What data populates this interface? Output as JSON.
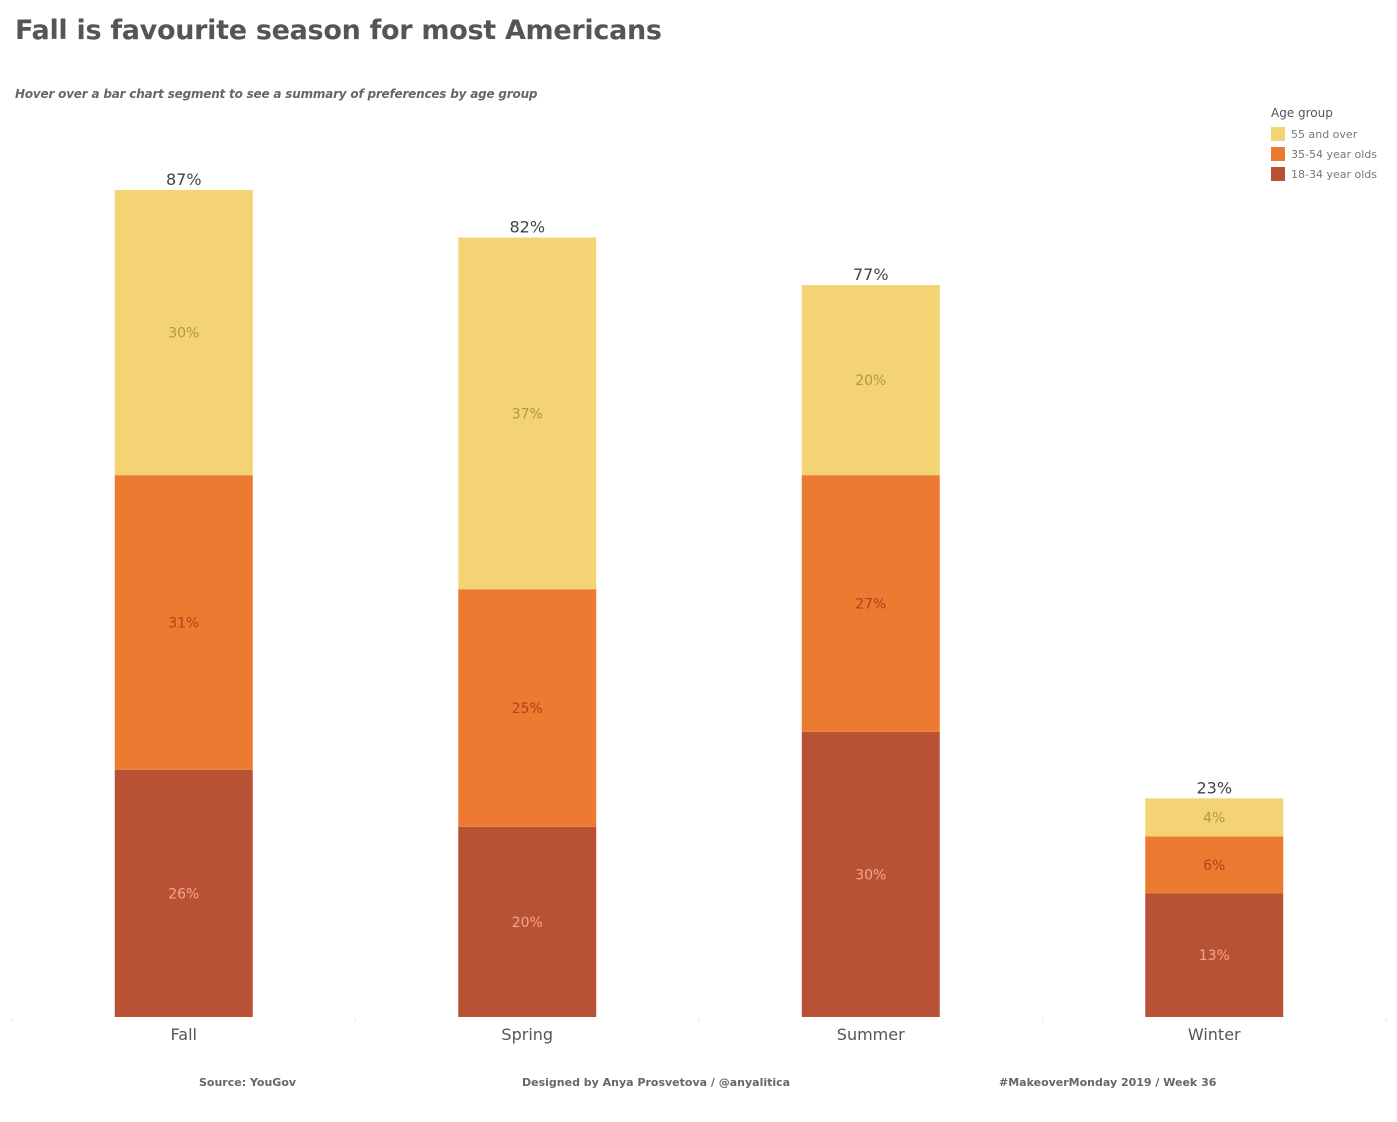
{
  "header": {
    "title": "Fall is favourite season for most Americans",
    "subtitle": "Hover over a bar chart  segment to see a summary of preferences by age group"
  },
  "legend": {
    "title": "Age group",
    "items": [
      {
        "label": "55 and over",
        "color": "#F3D374"
      },
      {
        "label": "35-54 year olds",
        "color": "#EC7A30"
      },
      {
        "label": "18-34 year olds",
        "color": "#B85235"
      }
    ]
  },
  "footer": {
    "source": "Source: YouGov",
    "credit": "Designed by Anya Prosvetova / @anyalitica",
    "tag": "#MakeoverMonday 2019 / Week 36"
  },
  "chart_data": {
    "type": "bar",
    "stacked": true,
    "title": "Fall is favourite season for most Americans",
    "xlabel": "",
    "ylabel": "",
    "ylim": [
      0,
      87
    ],
    "grid": false,
    "legend_position": "top-right",
    "categories": [
      "Fall",
      "Spring",
      "Summer",
      "Winter"
    ],
    "totals": [
      "87%",
      "82%",
      "77%",
      "23%"
    ],
    "series": [
      {
        "name": "18-34 year olds",
        "color": "#B85235",
        "label_color": "#F6A58A",
        "values": [
          26,
          20,
          30,
          13
        ]
      },
      {
        "name": "35-54 year olds",
        "color": "#EC7A30",
        "label_color": "#A8461A",
        "values": [
          31,
          25,
          27,
          6
        ]
      },
      {
        "name": "55 and over",
        "color": "#F3D374",
        "label_color": "#B09845",
        "values": [
          30,
          37,
          20,
          4
        ]
      }
    ]
  }
}
